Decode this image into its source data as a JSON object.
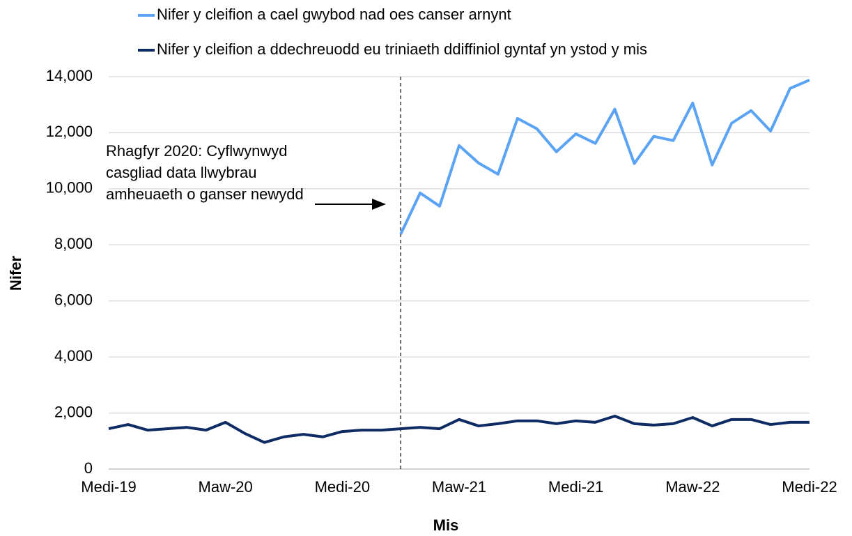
{
  "chart_data": {
    "type": "line",
    "legend": "top",
    "xlabel": "Mis",
    "ylabel": "Nifer",
    "annotation": [
      "Rhagfyr 2020: Cyflwynwyd",
      "casgliad data llwybrau",
      "amheuaeth o ganser newydd"
    ],
    "categories": [
      "Medi-19",
      null,
      null,
      null,
      null,
      null,
      "Maw-20",
      null,
      null,
      null,
      null,
      null,
      "Medi-20",
      null,
      null,
      null,
      null,
      null,
      "Maw-21",
      null,
      null,
      null,
      null,
      null,
      "Medi-21",
      null,
      null,
      null,
      null,
      null,
      "Maw-22",
      null,
      null,
      null,
      null,
      null,
      "Medi-22"
    ],
    "ylim": [
      0,
      14000
    ],
    "yticks": [
      0,
      {
        "value": 2000,
        "label": "2,000"
      },
      {
        "value": 4000,
        "label": "4,000"
      },
      {
        "value": 6000,
        "label": "6,000"
      },
      {
        "value": 8000,
        "label": "8,000"
      },
      {
        "value": 10000,
        "label": "10,000"
      },
      {
        "value": 12000,
        "label": "12,000"
      },
      {
        "value": 14000,
        "label": "14,000"
      }
    ],
    "grid": true,
    "series": [
      {
        "name": "Nifer y cleifion a cael gwybod nad oes canser arnynt",
        "color": "#5ba3f5",
        "values": [
          null,
          null,
          null,
          null,
          null,
          null,
          null,
          null,
          null,
          null,
          null,
          null,
          null,
          null,
          null,
          8380,
          9850,
          9380,
          11540,
          10920,
          10520,
          12510,
          12140,
          11320,
          11960,
          11620,
          12840,
          10900,
          11870,
          11720,
          13060,
          10850,
          12340,
          12790,
          12060,
          13580,
          13880
        ]
      },
      {
        "name": "Nifer y cleifion a ddechreuodd eu triniaeth ddiffiniol gyntaf yn ystod y mis",
        "color": "#0e2c63",
        "values": [
          1440,
          1590,
          1390,
          1440,
          1490,
          1390,
          1670,
          1270,
          950,
          1150,
          1240,
          1150,
          1340,
          1390,
          1390,
          1440,
          1490,
          1440,
          1770,
          1540,
          1620,
          1720,
          1720,
          1620,
          1720,
          1670,
          1890,
          1620,
          1570,
          1620,
          1840,
          1540,
          1770,
          1770,
          1590,
          1670,
          1670
        ]
      }
    ]
  }
}
